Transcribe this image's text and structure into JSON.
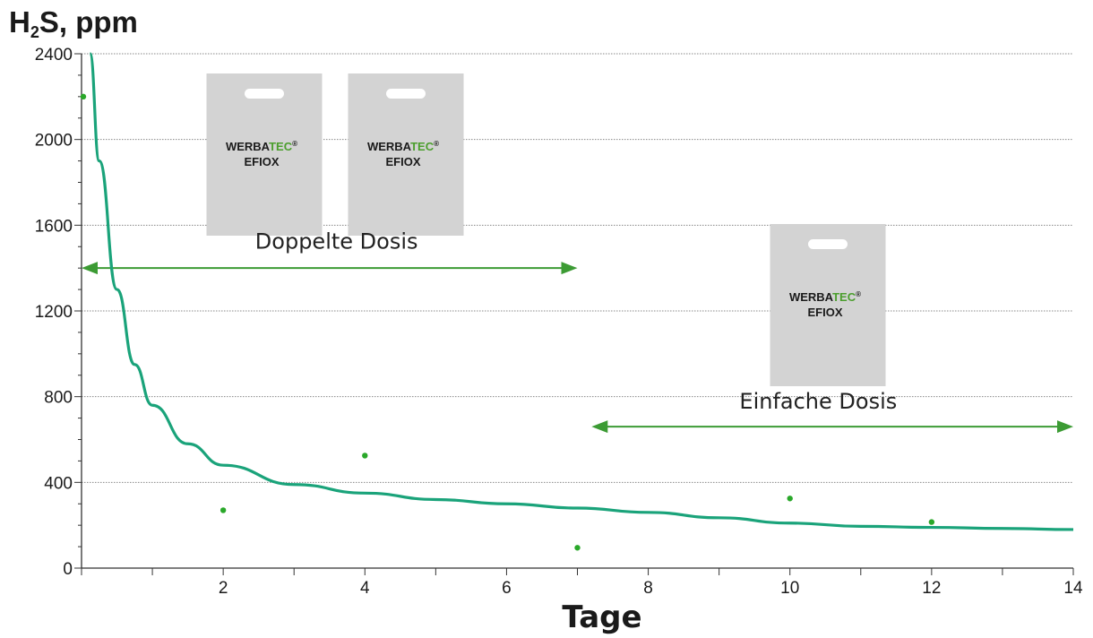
{
  "chart_data": {
    "type": "line",
    "title": "",
    "ylabel_main": "H",
    "ylabel_sub": "2",
    "ylabel_rest": "S, ppm",
    "xlabel": "Tage",
    "xlim": [
      0,
      14
    ],
    "ylim": [
      0,
      2400
    ],
    "xticks": [
      2,
      4,
      6,
      8,
      10,
      12,
      14
    ],
    "yticks": [
      0,
      400,
      800,
      1200,
      1600,
      2000,
      2400
    ],
    "grid": "horizontal dotted",
    "curve": {
      "color": "#1aa37a",
      "x": [
        0.12,
        0.25,
        0.5,
        0.75,
        1,
        1.5,
        2,
        3,
        4,
        5,
        6,
        7,
        8,
        9,
        10,
        11,
        12,
        13,
        14
      ],
      "y": [
        2400,
        1900,
        1300,
        950,
        760,
        580,
        480,
        390,
        350,
        320,
        300,
        280,
        260,
        235,
        210,
        195,
        190,
        185,
        180
      ]
    },
    "points": {
      "color": "#2aa82a",
      "x": [
        0,
        2,
        4,
        7,
        10,
        12
      ],
      "y": [
        2200,
        270,
        525,
        95,
        325,
        215
      ]
    },
    "annotations": [
      {
        "text": "Doppelte Dosis",
        "from": 0,
        "to": 7,
        "y": 1400,
        "label_x": 3.6,
        "label_y": 1490,
        "bags": 2
      },
      {
        "text": "Einfache Dosis",
        "from": 7.2,
        "to": 14,
        "y": 660,
        "label_x": 10.4,
        "label_y": 745,
        "bags": 1
      }
    ],
    "product": {
      "brand_a": "WERBA",
      "brand_b": "TEC",
      "reg": "®",
      "name": "EFIOX"
    },
    "colors": {
      "arrow": "#3c9b34",
      "bag": "#d3d3d3",
      "brand_green": "#4b9e2d",
      "text": "#1a1a1a"
    }
  }
}
